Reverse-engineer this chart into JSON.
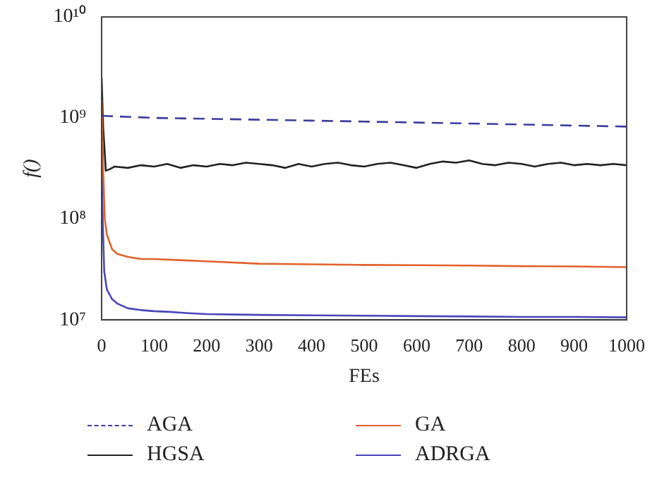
{
  "chart_data": {
    "type": "line",
    "xlabel": "FEs",
    "ylabel": "f()",
    "log": "y",
    "grid": false,
    "legend": "bottom",
    "marker": "none",
    "xlim": [
      0,
      1000
    ],
    "xticks": [
      0,
      100,
      200,
      300,
      400,
      500,
      600,
      700,
      800,
      900,
      1000
    ],
    "ylim": [
      10000000,
      10000000000
    ],
    "yticks": [
      {
        "value": 10000000,
        "label": "10⁷"
      },
      {
        "value": 100000000,
        "label": "10⁸"
      },
      {
        "value": 1000000000,
        "label": "10⁹"
      },
      {
        "value": 10000000000,
        "label": "10¹⁰"
      }
    ],
    "series": [
      {
        "name": "AGA",
        "color": "#3d3d9a",
        "line_style": "dashed",
        "x": [
          0,
          100,
          200,
          300,
          400,
          500,
          600,
          700,
          800,
          900,
          1000
        ],
        "values": [
          1050000000,
          1000000000,
          980000000,
          960000000,
          940000000,
          920000000,
          900000000,
          880000000,
          860000000,
          840000000,
          820000000
        ]
      },
      {
        "name": "GA",
        "color": "#e0622c",
        "line_style": "solid",
        "x": [
          0,
          3,
          6,
          10,
          20,
          30,
          50,
          75,
          100,
          150,
          200,
          300,
          400,
          500,
          600,
          700,
          800,
          900,
          1000
        ],
        "values": [
          1500000000,
          300000000,
          100000000,
          70000000,
          50000000,
          45000000,
          42000000,
          40000000,
          40000000,
          39000000,
          38000000,
          36000000,
          35500000,
          35000000,
          34800000,
          34500000,
          34000000,
          33800000,
          33300000
        ]
      },
      {
        "name": "HGSA",
        "color": "#222222",
        "line_style": "solid",
        "x": [
          0,
          3,
          8,
          15,
          25,
          50,
          75,
          100,
          125,
          150,
          175,
          200,
          225,
          250,
          275,
          300,
          325,
          350,
          375,
          400,
          425,
          450,
          475,
          500,
          525,
          550,
          575,
          600,
          625,
          650,
          675,
          700,
          725,
          750,
          775,
          800,
          825,
          850,
          875,
          900,
          925,
          950,
          975,
          1000
        ],
        "values": [
          2500000000,
          800000000,
          300000000,
          310000000,
          330000000,
          320000000,
          340000000,
          330000000,
          350000000,
          320000000,
          340000000,
          330000000,
          350000000,
          340000000,
          360000000,
          350000000,
          340000000,
          320000000,
          350000000,
          330000000,
          350000000,
          360000000,
          340000000,
          330000000,
          350000000,
          360000000,
          340000000,
          320000000,
          350000000,
          370000000,
          360000000,
          380000000,
          350000000,
          340000000,
          360000000,
          350000000,
          330000000,
          350000000,
          360000000,
          340000000,
          350000000,
          340000000,
          350000000,
          340000000
        ]
      },
      {
        "name": "ADRGA",
        "color": "#4a46b8",
        "line_style": "solid",
        "x": [
          0,
          2,
          5,
          10,
          20,
          30,
          50,
          75,
          100,
          130,
          160,
          200,
          250,
          300,
          400,
          500,
          600,
          700,
          800,
          900,
          1000
        ],
        "values": [
          500000000,
          100000000,
          30000000,
          20000000,
          16000000,
          14500000,
          13000000,
          12500000,
          12200000,
          12000000,
          11700000,
          11400000,
          11300000,
          11200000,
          11100000,
          11000000,
          10900000,
          10800000,
          10700000,
          10700000,
          10600000
        ]
      }
    ]
  }
}
